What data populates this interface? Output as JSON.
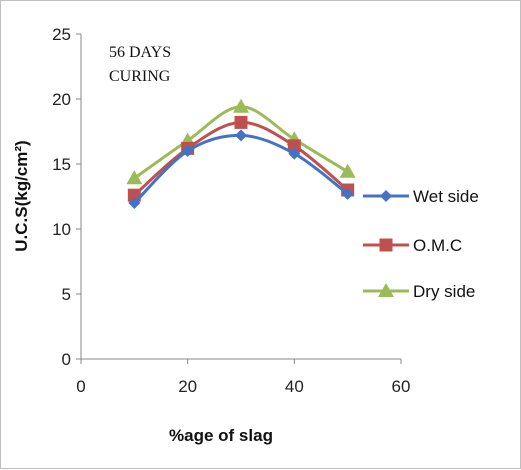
{
  "chart_data": {
    "type": "line",
    "title": "",
    "annotation": [
      "56 DAYS",
      "CURING"
    ],
    "xlabel": "%age of slag",
    "ylabel": "U.C.S(kg/cm²)",
    "xlim": [
      0,
      60
    ],
    "ylim": [
      0,
      25
    ],
    "x_ticks": [
      "0",
      "20",
      "40",
      "60"
    ],
    "y_ticks": [
      "0",
      "5",
      "10",
      "15",
      "20",
      "25"
    ],
    "grid": false,
    "legend_position": "right",
    "x": [
      10,
      20,
      30,
      40,
      50
    ],
    "series": [
      {
        "name": "Wet side",
        "color": "#4472C4",
        "marker": "diamond",
        "values": [
          12.0,
          16.0,
          17.2,
          15.8,
          12.7
        ]
      },
      {
        "name": "O.M.C",
        "color": "#C0504D",
        "marker": "square",
        "values": [
          12.6,
          16.2,
          18.2,
          16.4,
          13.0
        ]
      },
      {
        "name": "Dry side",
        "color": "#9BBB59",
        "marker": "triangle",
        "values": [
          13.9,
          16.8,
          19.4,
          16.9,
          14.4
        ]
      }
    ]
  }
}
